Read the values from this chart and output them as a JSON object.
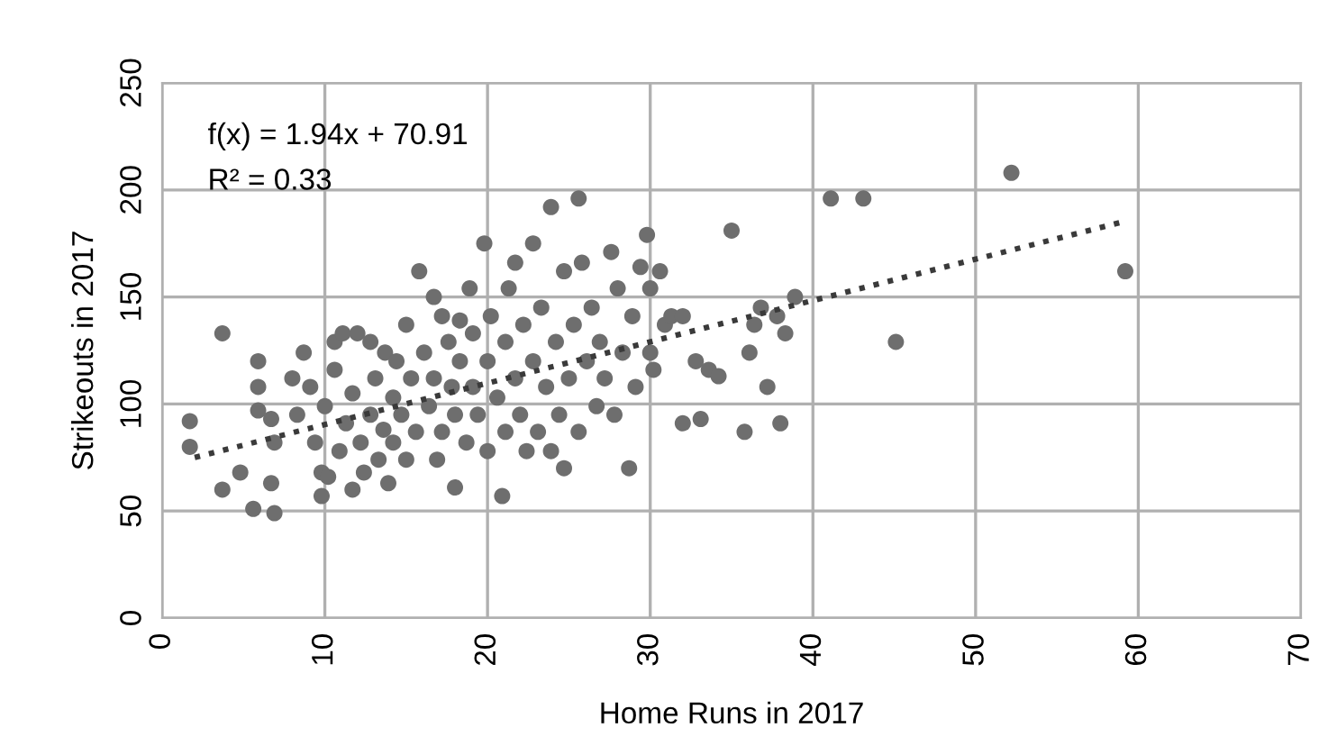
{
  "chart_data": {
    "type": "scatter",
    "xlabel": "Home Runs in 2017",
    "ylabel": "Strikeouts in 2017",
    "annotations": [
      "f(x) = 1.94x + 70.91",
      "R² = 0.33"
    ],
    "xlim": [
      0,
      70
    ],
    "xticks": [
      0,
      10,
      20,
      30,
      40,
      50,
      60,
      70
    ],
    "ylim": [
      0,
      250
    ],
    "yticks": [
      0,
      50,
      100,
      150,
      200,
      250
    ],
    "grid": true,
    "legend": false,
    "series": [
      {
        "color": "#6e6e6e",
        "marker": "circle",
        "x": [
          1.7,
          1.7,
          3.7,
          3.7,
          4.8,
          5.6,
          5.9,
          5.9,
          5.9,
          6.7,
          6.9,
          6.9,
          6.7,
          8,
          8.3,
          8.7,
          9.1,
          9.4,
          9.8,
          9.8,
          10,
          10.2,
          10.6,
          10.6,
          10.9,
          11.1,
          11.3,
          11.7,
          11.7,
          12,
          12.2,
          12.4,
          12.8,
          12.8,
          13.1,
          13.3,
          13.6,
          13.7,
          13.9,
          14.2,
          14.2,
          14.4,
          14.7,
          15,
          15,
          15.3,
          15.6,
          15.8,
          16.1,
          16.4,
          16.7,
          16.7,
          16.9,
          17.2,
          17.2,
          17.6,
          17.8,
          18,
          18,
          18.3,
          18.3,
          18.7,
          18.9,
          19.1,
          19.1,
          19.4,
          19.8,
          20,
          20,
          20.2,
          20.6,
          20.9,
          21.1,
          21.1,
          21.3,
          21.7,
          21.7,
          22,
          22.2,
          22.4,
          22.8,
          22.8,
          23.1,
          23.3,
          23.6,
          23.9,
          23.9,
          24.2,
          24.4,
          24.7,
          24.7,
          25,
          25.3,
          25.6,
          25.6,
          25.8,
          26.1,
          26.4,
          26.7,
          26.9,
          27.2,
          27.6,
          27.8,
          28,
          28.3,
          28.7,
          28.9,
          29.1,
          29.4,
          29.8,
          30,
          30,
          30.2,
          30.6,
          30.9,
          31.3,
          32,
          32,
          32.8,
          33.1,
          33.6,
          34.2,
          35,
          35.8,
          36.1,
          36.4,
          36.8,
          37.2,
          37.8,
          38,
          38.3,
          38.9,
          41.1,
          43.1,
          45.1,
          52.2,
          59.2
        ],
        "values": [
          92,
          80,
          133,
          60,
          68,
          51,
          120,
          108,
          97,
          63,
          49,
          82,
          93,
          112,
          95,
          124,
          108,
          82,
          68,
          57,
          99,
          66,
          129,
          116,
          78,
          133,
          91,
          60,
          105,
          133,
          82,
          68,
          129,
          95,
          112,
          74,
          88,
          124,
          63,
          103,
          82,
          120,
          95,
          137,
          74,
          112,
          87,
          162,
          124,
          99,
          150,
          112,
          74,
          141,
          87,
          129,
          108,
          61,
          95,
          139,
          120,
          82,
          154,
          108,
          133,
          95,
          175,
          120,
          78,
          141,
          103,
          57,
          129,
          87,
          154,
          166,
          112,
          95,
          137,
          78,
          120,
          175,
          87,
          145,
          108,
          192,
          78,
          129,
          95,
          162,
          70,
          112,
          137,
          196,
          87,
          166,
          120,
          145,
          99,
          129,
          112,
          171,
          95,
          154,
          124,
          70,
          141,
          108,
          164,
          179,
          154,
          124,
          116,
          162,
          137,
          141,
          141,
          91,
          120,
          93,
          116,
          113,
          181,
          87,
          124,
          137,
          145,
          108,
          141,
          91,
          133,
          150,
          196,
          196,
          129,
          208,
          162
        ]
      },
      {
        "type": "line",
        "color": "#3a3a3a",
        "line_style": "dotted",
        "marker": "none",
        "x": [
          2,
          59
        ],
        "values": [
          75,
          185
        ]
      }
    ]
  }
}
